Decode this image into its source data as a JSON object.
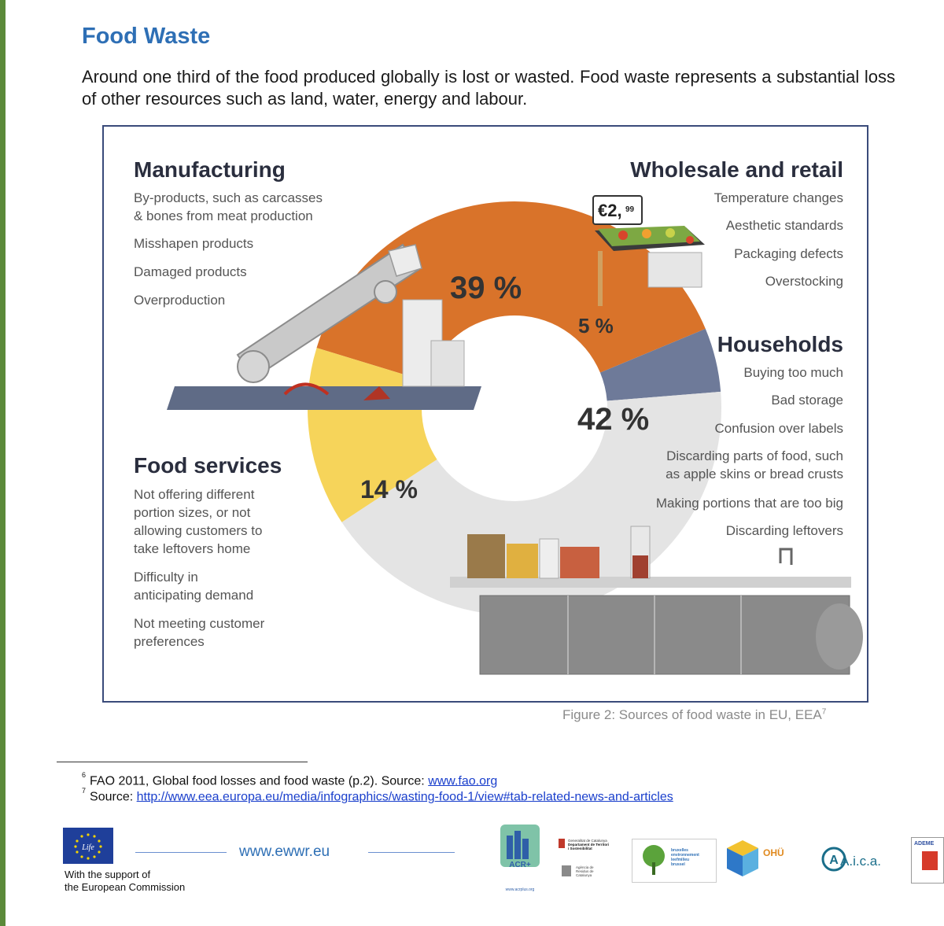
{
  "document": {
    "title": "Food Waste",
    "intro": "Around one third of the food produced globally is lost or wasted. Food waste represents a substantial loss of other resources such as land, water, energy and labour."
  },
  "chart_data": {
    "type": "pie",
    "categories": [
      "Manufacturing",
      "Wholesale and retail",
      "Households",
      "Food services"
    ],
    "values": [
      39,
      5,
      42,
      14
    ],
    "value_labels": [
      "39 %",
      "5 %",
      "42 %",
      "14 %"
    ],
    "colors": [
      "#d9732a",
      "#6e7a99",
      "#e4e4e4",
      "#f6d45a"
    ],
    "sections": {
      "manufacturing": {
        "heading": "Manufacturing",
        "items": [
          "By-products, such as carcasses",
          "& bones from meat production",
          "Misshapen products",
          "Damaged products",
          "Overproduction"
        ]
      },
      "wholesale": {
        "heading": "Wholesale and retail",
        "items": [
          "Temperature changes",
          "Aesthetic standards",
          "Packaging defects",
          "Overstocking"
        ],
        "price_tag": "€2,",
        "price_cents": "99"
      },
      "households": {
        "heading": "Households",
        "items": [
          "Buying too much",
          "Bad storage",
          "Confusion over labels",
          "Discarding parts of food, such",
          "as apple skins or bread crusts",
          "Making portions that are too big",
          "Discarding leftovers"
        ]
      },
      "food_services": {
        "heading": "Food services",
        "items": [
          "Not offering different",
          "portion sizes, or not",
          "allowing customers to",
          "take leftovers home",
          "Difficulty in",
          "anticipating demand",
          "Not meeting customer",
          "preferences"
        ]
      }
    }
  },
  "caption": {
    "text": "Figure 2: Sources of food waste in EU, EEA",
    "ref": "7"
  },
  "footnotes": [
    {
      "num": "6",
      "text": "FAO 2011, Global food losses and food waste (p.2). Source: ",
      "link": "www.fao.org"
    },
    {
      "num": "7",
      "text": "Source: ",
      "link": "http://www.eea.europa.eu/media/infographics/wasting-food-1/view#tab-related-news-and-articles"
    }
  ],
  "footer": {
    "eu_support_line1": "With the support of",
    "eu_support_line2": "the European Commission",
    "eu_logo_text": "Life",
    "website": "www.ewwr.eu",
    "logos": {
      "acr": "ACR+",
      "acr_url": "www.acrplus.org",
      "catalunya_1": "Generalitat de Catalunya",
      "catalunya_2": "Departament de Territori",
      "catalunya_3": "i Sostenibilitat",
      "residus_1": "Agència de",
      "residus_2": "Residus de",
      "residus_3": "Catalunya",
      "brussels_1": "bruxelles",
      "brussels_2": "environnement",
      "brussels_3": "leefmilieu",
      "brussels_4": "brussel",
      "ohu": "OHÜ",
      "aica": "A.i.c.a.",
      "ademe": "ADEME"
    }
  }
}
